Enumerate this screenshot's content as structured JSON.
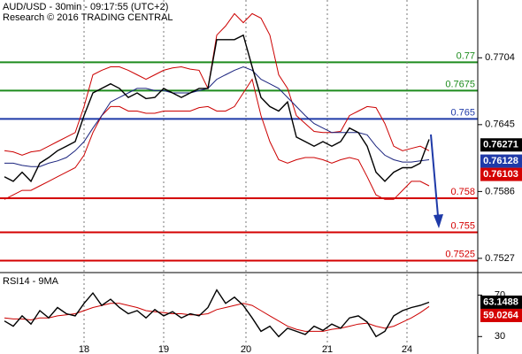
{
  "chart_data": [
    {
      "type": "line",
      "title": "AUD/USD - 30min - 09:17:55 (UTC+2)",
      "subtitle": "Research © 2016 TRADING CENTRAL",
      "x": [
        0,
        1,
        2,
        3,
        4,
        5,
        6,
        7,
        8,
        9,
        10,
        11,
        12,
        13,
        14,
        15,
        16,
        17,
        18,
        19,
        20,
        21,
        22,
        23,
        24,
        25,
        26,
        27,
        28,
        29,
        30,
        31,
        32,
        33,
        34,
        35,
        36,
        37,
        38,
        39,
        40,
        41,
        42,
        43,
        44,
        45,
        46,
        47,
        48
      ],
      "xlim": [
        -0.5,
        53.5
      ],
      "ylim": [
        0.7516,
        0.7755
      ],
      "yticks": [
        0.7704,
        0.7645,
        0.7586,
        0.7527
      ],
      "series": [
        {
          "color": "#cc0000",
          "values": [
            0.7622,
            0.7621,
            0.7618,
            0.7621,
            0.7622,
            0.7626,
            0.763,
            0.7634,
            0.7638,
            0.7661,
            0.7689,
            0.7693,
            0.7696,
            0.7696,
            0.7693,
            0.7689,
            0.7685,
            0.7689,
            0.7693,
            0.7695,
            0.7696,
            0.7694,
            0.7693,
            0.7677,
            0.7724,
            0.7732,
            0.7743,
            0.7735,
            0.7743,
            0.7739,
            0.7724,
            0.7689,
            0.7677,
            0.7653,
            0.7646,
            0.7639,
            0.7638,
            0.7638,
            0.7639,
            0.7653,
            0.7657,
            0.7661,
            0.766,
            0.7646,
            0.7626,
            0.7622,
            0.7624,
            0.7626,
            0.7622
          ]
        },
        {
          "color": "#cc0000",
          "values": [
            0.7579,
            0.7583,
            0.7587,
            0.7587,
            0.7591,
            0.7595,
            0.7599,
            0.7603,
            0.7607,
            0.7618,
            0.7638,
            0.7653,
            0.7661,
            0.7661,
            0.7657,
            0.7657,
            0.7655,
            0.7655,
            0.7657,
            0.7657,
            0.7657,
            0.7657,
            0.766,
            0.7661,
            0.7657,
            0.7657,
            0.7661,
            0.7673,
            0.7685,
            0.7653,
            0.763,
            0.7614,
            0.7611,
            0.7614,
            0.7616,
            0.7616,
            0.7614,
            0.7611,
            0.7614,
            0.7616,
            0.7614,
            0.7599,
            0.7583,
            0.7579,
            0.7579,
            0.7587,
            0.7595,
            0.7595,
            0.7591
          ]
        },
        {
          "color": "#1a237e",
          "values": [
            0.7611,
            0.7611,
            0.7609,
            0.7608,
            0.7608,
            0.7611,
            0.7613,
            0.7616,
            0.7622,
            0.763,
            0.7642,
            0.7653,
            0.7665,
            0.7669,
            0.7673,
            0.7677,
            0.7677,
            0.7675,
            0.7675,
            0.7673,
            0.7673,
            0.7673,
            0.7675,
            0.7677,
            0.7685,
            0.7689,
            0.7693,
            0.7696,
            0.7693,
            0.7685,
            0.7681,
            0.7677,
            0.7669,
            0.7661,
            0.7653,
            0.7646,
            0.7642,
            0.7638,
            0.7638,
            0.7638,
            0.7638,
            0.7636,
            0.7626,
            0.7618,
            0.7614,
            0.7612,
            0.7612,
            0.7613,
            0.7614
          ]
        },
        {
          "color": "#000000",
          "values": [
            0.7599,
            0.7595,
            0.7603,
            0.7595,
            0.7611,
            0.7616,
            0.7622,
            0.7626,
            0.763,
            0.7653,
            0.7673,
            0.7677,
            0.7681,
            0.7677,
            0.7669,
            0.7673,
            0.7668,
            0.7669,
            0.7677,
            0.7673,
            0.7669,
            0.7673,
            0.7677,
            0.7677,
            0.772,
            0.772,
            0.772,
            0.7724,
            0.7696,
            0.7669,
            0.7661,
            0.7657,
            0.7665,
            0.7634,
            0.763,
            0.7626,
            0.763,
            0.7626,
            0.763,
            0.7642,
            0.7638,
            0.7626,
            0.7603,
            0.7595,
            0.7603,
            0.7607,
            0.7607,
            0.7611,
            0.7632
          ]
        }
      ],
      "levels": [
        {
          "value": 0.77,
          "color": "#1e8c1e"
        },
        {
          "value": 0.7675,
          "color": "#1e8c1e"
        },
        {
          "value": 0.765,
          "color": "#1f3aa8"
        },
        {
          "value": 0.758,
          "color": "#d40000"
        },
        {
          "value": 0.755,
          "color": "#d40000"
        },
        {
          "value": 0.7525,
          "color": "#d40000"
        }
      ],
      "price_tags": [
        {
          "value": 0.76271,
          "color": "#000000"
        },
        {
          "value": 0.76128,
          "color": "#1f3aa8"
        },
        {
          "value": 0.76103,
          "color": "#d40000"
        }
      ]
    },
    {
      "type": "line",
      "title": "RSI14 - 9MA",
      "x": [
        0,
        1,
        2,
        3,
        4,
        5,
        6,
        7,
        8,
        9,
        10,
        11,
        12,
        13,
        14,
        15,
        16,
        17,
        18,
        19,
        20,
        21,
        22,
        23,
        24,
        25,
        26,
        27,
        28,
        29,
        30,
        31,
        32,
        33,
        34,
        35,
        36,
        37,
        38,
        39,
        40,
        41,
        42,
        43,
        44,
        45,
        46,
        47,
        48
      ],
      "xlim": [
        -0.5,
        53.5
      ],
      "xticks": [
        {
          "value": 9,
          "label": "18"
        },
        {
          "value": 18,
          "label": "19"
        },
        {
          "value": 27.3,
          "label": "20"
        },
        {
          "value": 36.5,
          "label": "21"
        },
        {
          "value": 45.5,
          "label": "24"
        }
      ],
      "ylim": [
        20,
        90
      ],
      "yticks": [
        70,
        30
      ],
      "series": [
        {
          "color": "#cc0000",
          "values": [
            48,
            47,
            47,
            46,
            48,
            48,
            50,
            51,
            52,
            55,
            58,
            60,
            62,
            62,
            60,
            58,
            55,
            54,
            53,
            52,
            52,
            51,
            51,
            52,
            56,
            58,
            60,
            62,
            60,
            55,
            50,
            45,
            40,
            37,
            35,
            35,
            35,
            37,
            38,
            40,
            42,
            43,
            40,
            38,
            40,
            44,
            48,
            53,
            59.0264
          ]
        },
        {
          "color": "#000000",
          "values": [
            45,
            40,
            50,
            42,
            55,
            48,
            58,
            52,
            50,
            62,
            72,
            60,
            66,
            58,
            52,
            55,
            48,
            56,
            50,
            54,
            48,
            52,
            50,
            58,
            75,
            62,
            68,
            60,
            48,
            35,
            40,
            30,
            38,
            35,
            32,
            40,
            36,
            42,
            38,
            48,
            50,
            44,
            30,
            35,
            50,
            55,
            58,
            60,
            63.1488
          ]
        }
      ],
      "price_tags": [
        {
          "value": 63.1488,
          "color": "#000000"
        },
        {
          "value": 59.0264,
          "color": "#d40000"
        }
      ]
    }
  ]
}
